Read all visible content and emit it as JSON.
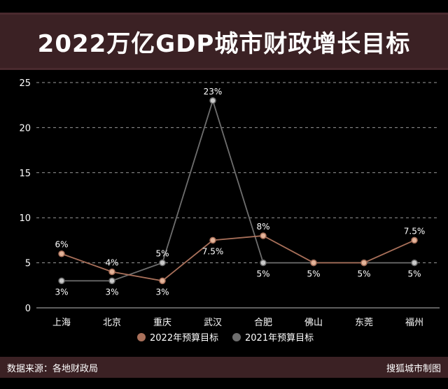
{
  "title": "2022万亿GDP城市财政增长目标",
  "footer": {
    "source": "数据来源：各地财政局",
    "credit": "搜狐城市制图"
  },
  "colors": {
    "series_2022": "#a9705a",
    "series_2021": "#6e6e6e",
    "grid": "#9a9a9a",
    "title_bg": "#3b2124"
  },
  "chart_data": {
    "type": "line",
    "categories": [
      "上海",
      "北京",
      "重庆",
      "武汉",
      "合肥",
      "佛山",
      "东莞",
      "福州"
    ],
    "ylim": [
      0,
      25
    ],
    "yticks": [
      0,
      5,
      10,
      15,
      20,
      25
    ],
    "grid": true,
    "legend_position": "bottom",
    "series": [
      {
        "name": "2022年预算目标",
        "values": [
          6,
          4,
          3,
          7.5,
          8,
          5,
          5,
          7.5
        ],
        "labels": [
          "6%",
          "4%",
          "3%",
          "7.5%",
          "8%",
          "",
          "",
          "7.5%"
        ],
        "color": "#a9705a"
      },
      {
        "name": "2021年预算目标",
        "values": [
          3,
          3,
          5,
          23,
          5,
          5,
          5,
          5
        ],
        "labels": [
          "3%",
          "3%",
          "5%",
          "23%",
          "5%",
          "5%",
          "5%",
          "5%"
        ],
        "color": "#6e6e6e"
      }
    ]
  }
}
